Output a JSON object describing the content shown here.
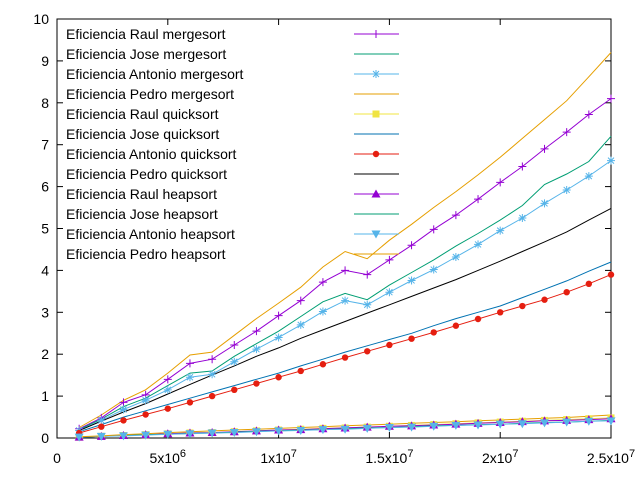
{
  "chart_data": {
    "type": "line",
    "title": "",
    "xlabel": "",
    "ylabel": "",
    "xlim": [
      0,
      25000000
    ],
    "ylim": [
      0,
      10
    ],
    "grid": false,
    "legend_position": "top-left",
    "x_ticks": [
      {
        "value": 0,
        "label": "0"
      },
      {
        "value": 5000000,
        "label": "5x10",
        "exp": "6"
      },
      {
        "value": 10000000,
        "label": "1x10",
        "exp": "7"
      },
      {
        "value": 15000000,
        "label": "1.5x10",
        "exp": "7"
      },
      {
        "value": 20000000,
        "label": "2x10",
        "exp": "7"
      },
      {
        "value": 25000000,
        "label": "2.5x10",
        "exp": "7"
      }
    ],
    "y_ticks": [
      {
        "value": 0,
        "label": "0"
      },
      {
        "value": 1,
        "label": "1"
      },
      {
        "value": 2,
        "label": "2"
      },
      {
        "value": 3,
        "label": "3"
      },
      {
        "value": 4,
        "label": "4"
      },
      {
        "value": 5,
        "label": "5"
      },
      {
        "value": 6,
        "label": "6"
      },
      {
        "value": 7,
        "label": "7"
      },
      {
        "value": 8,
        "label": "8"
      },
      {
        "value": 9,
        "label": "9"
      },
      {
        "value": 10,
        "label": "10"
      }
    ],
    "x": [
      1000000,
      2000000,
      3000000,
      4000000,
      5000000,
      6000000,
      7000000,
      8000000,
      9000000,
      10000000,
      11000000,
      12000000,
      13000000,
      14000000,
      15000000,
      16000000,
      17000000,
      18000000,
      19000000,
      20000000,
      21000000,
      22000000,
      23000000,
      24000000,
      25000000
    ],
    "series": [
      {
        "name": "Eficiencia Raul mergesort",
        "color": "#9400d3",
        "marker": "plus",
        "values": [
          0.22,
          0.48,
          0.85,
          1.03,
          1.4,
          1.78,
          1.88,
          2.22,
          2.55,
          2.92,
          3.28,
          3.72,
          4.0,
          3.9,
          4.25,
          4.6,
          4.98,
          5.32,
          5.7,
          6.1,
          6.48,
          6.9,
          7.3,
          7.72,
          8.1
        ]
      },
      {
        "name": "Eficiencia Jose mergesort",
        "color": "#009e73",
        "marker": "none",
        "values": [
          0.2,
          0.45,
          0.75,
          0.95,
          1.25,
          1.55,
          1.6,
          1.95,
          2.25,
          2.55,
          2.9,
          3.25,
          3.45,
          3.3,
          3.65,
          3.95,
          4.25,
          4.58,
          4.88,
          5.2,
          5.55,
          6.05,
          6.3,
          6.6,
          7.2
        ]
      },
      {
        "name": "Eficiencia Antonio mergesort",
        "color": "#56b4e9",
        "marker": "star",
        "values": [
          0.18,
          0.42,
          0.68,
          0.9,
          1.15,
          1.45,
          1.52,
          1.82,
          2.12,
          2.4,
          2.7,
          3.02,
          3.28,
          3.18,
          3.48,
          3.76,
          4.02,
          4.32,
          4.62,
          4.95,
          5.25,
          5.6,
          5.92,
          6.25,
          6.62
        ]
      },
      {
        "name": "Eficiencia Pedro mergesort",
        "color": "#e69f00",
        "marker": "none",
        "values": [
          0.25,
          0.55,
          0.9,
          1.15,
          1.55,
          1.98,
          2.05,
          2.45,
          2.85,
          3.22,
          3.6,
          4.08,
          4.45,
          4.28,
          4.72,
          5.1,
          5.5,
          5.88,
          6.28,
          6.7,
          7.15,
          7.6,
          8.05,
          8.62,
          9.2
        ]
      },
      {
        "name": "Eficiencia Raul quicksort",
        "color": "#f0e442",
        "marker": "square",
        "values": [
          0.02,
          0.04,
          0.06,
          0.08,
          0.1,
          0.12,
          0.13,
          0.15,
          0.17,
          0.19,
          0.21,
          0.23,
          0.24,
          0.26,
          0.28,
          0.3,
          0.32,
          0.34,
          0.36,
          0.38,
          0.4,
          0.42,
          0.44,
          0.46,
          0.48
        ]
      },
      {
        "name": "Eficiencia Jose quicksort",
        "color": "#0072b2",
        "marker": "none",
        "values": [
          0.15,
          0.32,
          0.5,
          0.65,
          0.8,
          0.95,
          1.1,
          1.25,
          1.4,
          1.55,
          1.72,
          1.88,
          2.05,
          2.2,
          2.35,
          2.5,
          2.68,
          2.85,
          3.0,
          3.15,
          3.35,
          3.55,
          3.75,
          3.98,
          4.2
        ]
      },
      {
        "name": "Eficiencia Antonio quicksort",
        "color": "#e51e10",
        "marker": "circle",
        "values": [
          0.12,
          0.27,
          0.42,
          0.56,
          0.7,
          0.85,
          1.0,
          1.15,
          1.3,
          1.45,
          1.6,
          1.76,
          1.92,
          2.07,
          2.22,
          2.37,
          2.52,
          2.68,
          2.84,
          3.0,
          3.15,
          3.3,
          3.48,
          3.68,
          3.9
        ]
      },
      {
        "name": "Eficiencia Pedro quicksort",
        "color": "#000000",
        "marker": "none",
        "values": [
          0.18,
          0.4,
          0.62,
          0.82,
          1.05,
          1.28,
          1.5,
          1.72,
          1.95,
          2.15,
          2.38,
          2.58,
          2.78,
          2.98,
          3.18,
          3.38,
          3.58,
          3.78,
          4.0,
          4.22,
          4.45,
          4.68,
          4.92,
          5.2,
          5.48
        ]
      },
      {
        "name": "Eficiencia Raul heapsort",
        "color": "#9400d3",
        "marker": "triangle-up",
        "values": [
          0.02,
          0.04,
          0.06,
          0.08,
          0.1,
          0.12,
          0.13,
          0.15,
          0.17,
          0.19,
          0.2,
          0.22,
          0.24,
          0.26,
          0.28,
          0.29,
          0.31,
          0.33,
          0.35,
          0.37,
          0.39,
          0.41,
          0.42,
          0.44,
          0.46
        ]
      },
      {
        "name": "Eficiencia Jose heapsort",
        "color": "#009e73",
        "marker": "none",
        "values": [
          0.02,
          0.04,
          0.06,
          0.08,
          0.09,
          0.11,
          0.12,
          0.14,
          0.16,
          0.17,
          0.19,
          0.2,
          0.22,
          0.24,
          0.25,
          0.27,
          0.29,
          0.3,
          0.32,
          0.33,
          0.35,
          0.37,
          0.38,
          0.4,
          0.42
        ]
      },
      {
        "name": "Eficiencia Antonio heapsort",
        "color": "#56b4e9",
        "marker": "triangle-down",
        "values": [
          0.02,
          0.04,
          0.05,
          0.07,
          0.09,
          0.1,
          0.12,
          0.13,
          0.15,
          0.17,
          0.18,
          0.2,
          0.21,
          0.23,
          0.25,
          0.26,
          0.28,
          0.3,
          0.31,
          0.33,
          0.34,
          0.36,
          0.38,
          0.4,
          0.41
        ]
      },
      {
        "name": "Eficiencia Pedro heapsort",
        "color": "#e69f00",
        "marker": "none",
        "values": [
          0.03,
          0.05,
          0.08,
          0.1,
          0.13,
          0.15,
          0.17,
          0.19,
          0.21,
          0.23,
          0.25,
          0.27,
          0.29,
          0.31,
          0.33,
          0.35,
          0.37,
          0.39,
          0.41,
          0.43,
          0.45,
          0.47,
          0.49,
          0.52,
          0.55
        ]
      }
    ]
  }
}
